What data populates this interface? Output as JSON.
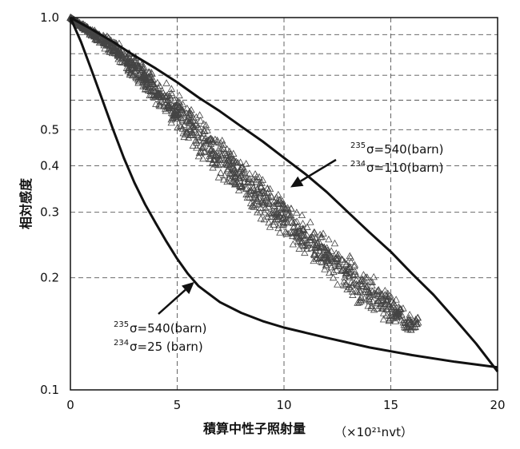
{
  "chart_data": {
    "type": "scatter",
    "ylabel": "相対感度",
    "xlabel": "積算中性子照射量",
    "xunit": "（×10²¹nvt）",
    "xlim": [
      0,
      20
    ],
    "ylim": [
      0.1,
      1.0
    ],
    "yscale": "log",
    "grid": true,
    "xticks": [
      "0",
      "5",
      "10",
      "15",
      "20"
    ],
    "yticks": [
      {
        "value": 1.0,
        "label": "1.0"
      },
      {
        "value": 0.5,
        "label": "0.5"
      },
      {
        "value": 0.4,
        "label": "0.4"
      },
      {
        "value": 0.3,
        "label": "0.3"
      },
      {
        "value": 0.2,
        "label": "0.2"
      },
      {
        "value": 0.1,
        "label": "0.1"
      }
    ],
    "y_minor_gridlines": [
      0.9,
      0.8,
      0.7,
      0.6
    ],
    "curves": [
      {
        "points": [
          [
            0,
            1.0
          ],
          [
            1,
            0.93
          ],
          [
            2,
            0.86
          ],
          [
            3,
            0.79
          ],
          [
            4,
            0.73
          ],
          [
            5,
            0.67
          ],
          [
            6,
            0.61
          ],
          [
            7,
            0.56
          ],
          [
            8,
            0.51
          ],
          [
            9,
            0.465
          ],
          [
            10,
            0.42
          ],
          [
            11,
            0.38
          ],
          [
            12,
            0.34
          ],
          [
            13,
            0.3
          ],
          [
            14,
            0.265
          ],
          [
            15,
            0.235
          ],
          [
            16,
            0.205
          ],
          [
            17,
            0.18
          ],
          [
            18,
            0.155
          ],
          [
            19,
            0.133
          ],
          [
            20,
            0.112
          ]
        ]
      },
      {
        "points": [
          [
            0,
            1.0
          ],
          [
            0.5,
            0.86
          ],
          [
            1,
            0.72
          ],
          [
            1.5,
            0.6
          ],
          [
            2,
            0.5
          ],
          [
            2.5,
            0.42
          ],
          [
            3,
            0.36
          ],
          [
            3.5,
            0.315
          ],
          [
            4,
            0.28
          ],
          [
            4.5,
            0.25
          ],
          [
            5,
            0.225
          ],
          [
            5.5,
            0.205
          ],
          [
            6,
            0.19
          ],
          [
            7,
            0.172
          ],
          [
            8,
            0.161
          ],
          [
            9,
            0.153
          ],
          [
            10,
            0.147
          ],
          [
            12,
            0.138
          ],
          [
            14,
            0.13
          ],
          [
            16,
            0.124
          ],
          [
            18,
            0.119
          ],
          [
            20,
            0.115
          ]
        ]
      }
    ],
    "scatter": {
      "marker": "triangle-open",
      "x_range": [
        0,
        16.3
      ],
      "bands": [
        {
          "points": [
            [
              0,
              1.0
            ],
            [
              2,
              0.88
            ],
            [
              4,
              0.72
            ],
            [
              6,
              0.56
            ],
            [
              8,
              0.42
            ],
            [
              10,
              0.33
            ],
            [
              12,
              0.26
            ],
            [
              14,
              0.21
            ],
            [
              16,
              0.16
            ]
          ]
        },
        {
          "points": [
            [
              0,
              1.0
            ],
            [
              2,
              0.78
            ],
            [
              4,
              0.58
            ],
            [
              6,
              0.42
            ],
            [
              8,
              0.32
            ],
            [
              10,
              0.25
            ],
            [
              12,
              0.2
            ],
            [
              14,
              0.16
            ],
            [
              16,
              0.14
            ]
          ]
        }
      ]
    },
    "annotations": [
      {
        "name": "upper",
        "lines": [
          {
            "sup": "235",
            "text": "σ=540(barn)"
          },
          {
            "sup": "234",
            "text": "σ=110(barn)"
          }
        ],
        "arrow_to": [
          10.3,
          0.35
        ]
      },
      {
        "name": "lower",
        "lines": [
          {
            "sup": "235",
            "text": "σ=540(barn)"
          },
          {
            "sup": "234",
            "text": "σ=25  (barn)"
          }
        ],
        "arrow_to": [
          5.8,
          0.195
        ]
      }
    ]
  }
}
